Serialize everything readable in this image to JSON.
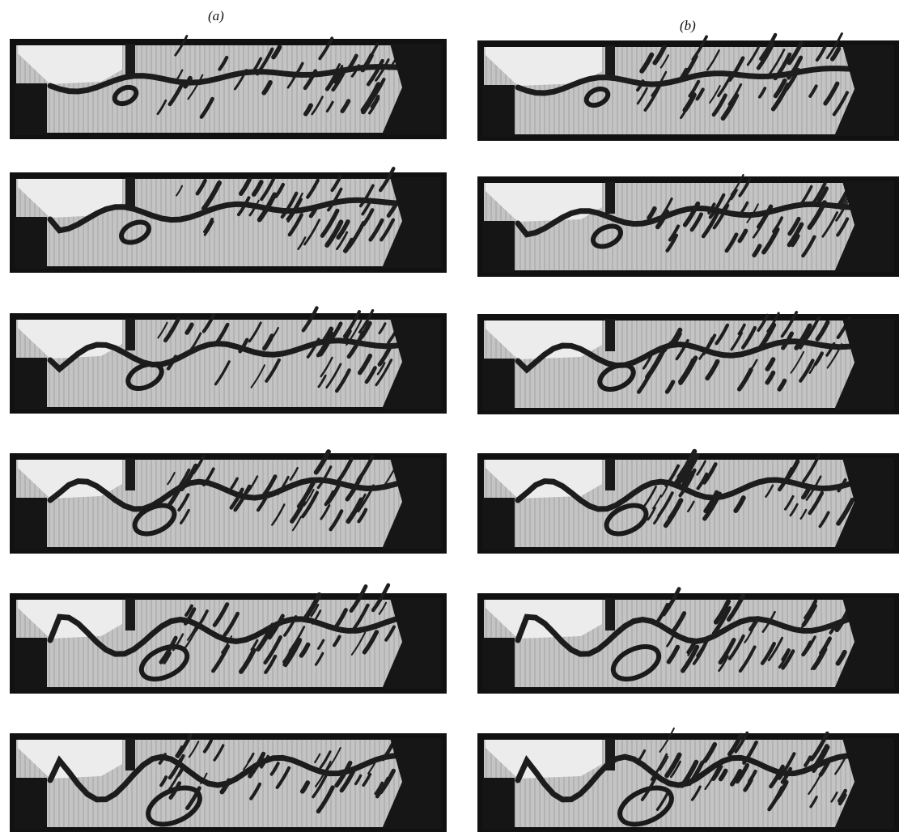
{
  "columns": [
    {
      "label": "(a)"
    },
    {
      "label": "(b)"
    }
  ]
}
